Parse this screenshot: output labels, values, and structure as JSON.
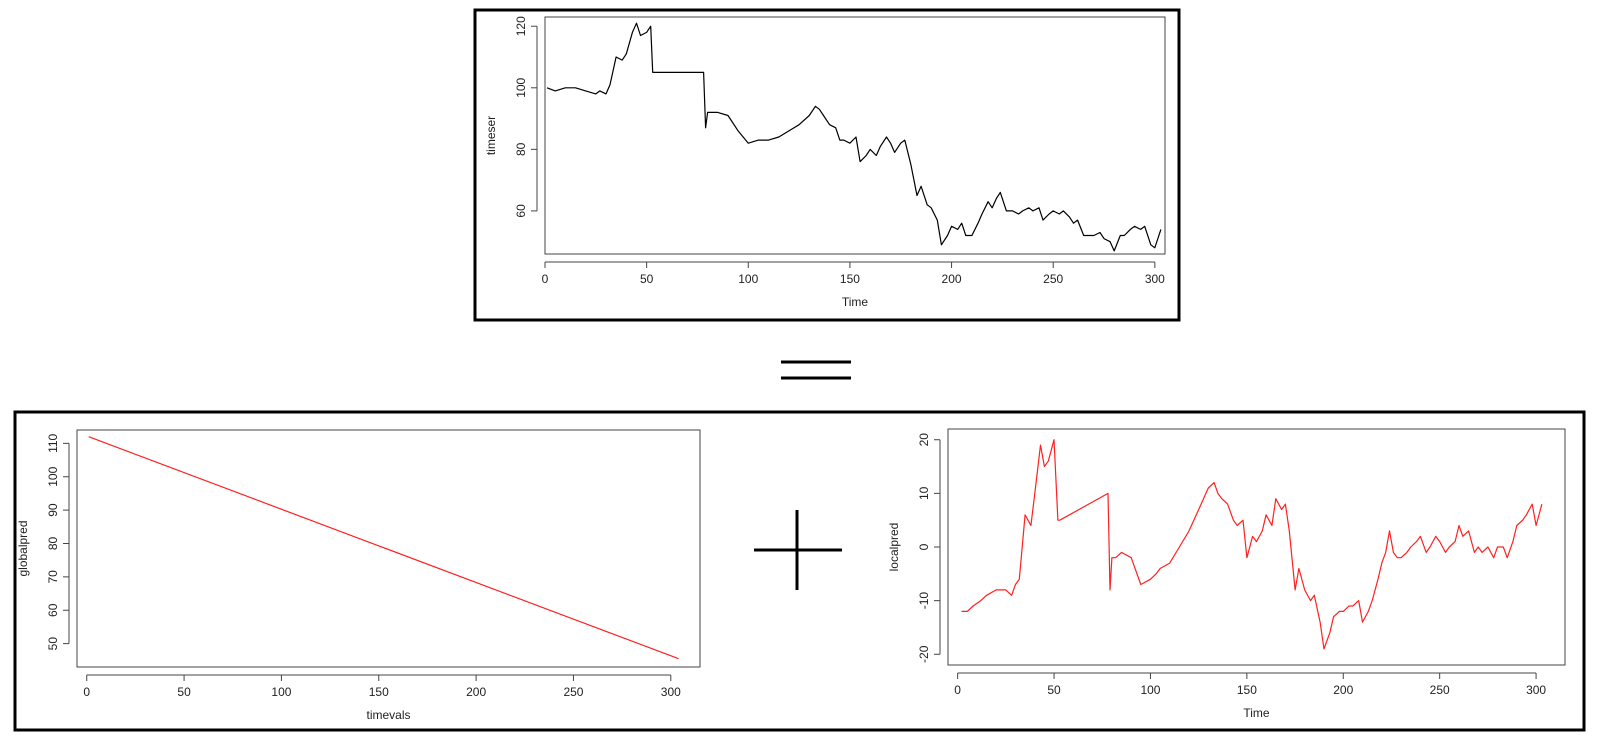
{
  "colors": {
    "frame": "#000000",
    "axis": "#444444",
    "series_black": "#000000",
    "series_red": "#ff2020"
  },
  "symbols": {
    "equals": "equals-icon",
    "plus": "plus-icon"
  },
  "chart_data": [
    {
      "id": "top",
      "type": "line",
      "title": "",
      "xlabel": "Time",
      "ylabel": "timeser",
      "xlim": [
        0,
        305
      ],
      "ylim": [
        46,
        123
      ],
      "xticks": [
        0,
        50,
        100,
        150,
        200,
        250,
        300
      ],
      "yticks": [
        60,
        80,
        100,
        120
      ],
      "color_key": "series_black",
      "series": [
        {
          "x": [
            1,
            5,
            10,
            15,
            20,
            25,
            27,
            30,
            32,
            35,
            38,
            40,
            43,
            45,
            47,
            50,
            52,
            53,
            78,
            79,
            80,
            82,
            85,
            90,
            95,
            100,
            105,
            110,
            115,
            120,
            125,
            130,
            133,
            135,
            137,
            140,
            143,
            145,
            147,
            150,
            153,
            155,
            158,
            160,
            163,
            165,
            168,
            170,
            172,
            175,
            177,
            180,
            183,
            185,
            188,
            190,
            193,
            195,
            198,
            200,
            203,
            205,
            207,
            210,
            213,
            215,
            218,
            220,
            222,
            224,
            227,
            230,
            233,
            235,
            238,
            240,
            243,
            245,
            248,
            250,
            253,
            255,
            258,
            260,
            262,
            265,
            267,
            270,
            273,
            275,
            278,
            280,
            283,
            285,
            288,
            290,
            293,
            295,
            298,
            300,
            303
          ],
          "y": [
            100,
            99,
            100,
            100,
            99,
            98,
            99,
            98,
            101,
            110,
            109,
            111,
            118,
            121,
            117,
            118,
            120,
            105,
            105,
            87,
            92,
            92,
            92,
            91,
            86,
            82,
            83,
            83,
            84,
            86,
            88,
            91,
            94,
            93,
            91,
            88,
            87,
            83,
            83,
            82,
            84,
            76,
            78,
            80,
            78,
            81,
            84,
            82,
            79,
            82,
            83,
            75,
            65,
            68,
            62,
            61,
            57,
            49,
            52,
            55,
            54,
            56,
            52,
            52,
            56,
            59,
            63,
            61,
            64,
            66,
            60,
            60,
            59,
            60,
            61,
            60,
            61,
            57,
            59,
            60,
            59,
            60,
            58,
            56,
            57,
            52,
            52,
            52,
            53,
            51,
            50,
            47,
            52,
            52,
            54,
            55,
            54,
            55,
            49,
            48,
            54
          ]
        }
      ]
    },
    {
      "id": "left",
      "type": "line",
      "title": "",
      "xlabel": "timevals",
      "ylabel": "globalpred",
      "xlim": [
        -5,
        315
      ],
      "ylim": [
        43,
        114
      ],
      "xticks": [
        0,
        50,
        100,
        150,
        200,
        250,
        300
      ],
      "yticks": [
        50,
        60,
        70,
        80,
        90,
        100,
        110
      ],
      "color_key": "series_red",
      "series": [
        {
          "x": [
            1,
            304
          ],
          "y": [
            112,
            45.5
          ]
        }
      ]
    },
    {
      "id": "right",
      "type": "line",
      "title": "",
      "xlabel": "Time",
      "ylabel": "localpred",
      "xlim": [
        -5,
        315
      ],
      "ylim": [
        -22,
        22
      ],
      "xticks": [
        0,
        50,
        100,
        150,
        200,
        250,
        300
      ],
      "yticks": [
        -20,
        -10,
        0,
        10,
        20
      ],
      "color_key": "series_red",
      "series": [
        {
          "x": [
            2,
            5,
            8,
            12,
            15,
            20,
            25,
            28,
            30,
            32,
            35,
            38,
            40,
            43,
            45,
            47,
            50,
            52,
            53,
            78,
            79,
            80,
            82,
            85,
            90,
            95,
            100,
            103,
            105,
            110,
            115,
            120,
            125,
            130,
            133,
            135,
            137,
            140,
            143,
            145,
            148,
            150,
            153,
            155,
            158,
            160,
            163,
            165,
            168,
            170,
            172,
            175,
            177,
            180,
            183,
            185,
            188,
            190,
            193,
            195,
            198,
            200,
            203,
            205,
            208,
            210,
            213,
            215,
            218,
            220,
            222,
            224,
            226,
            228,
            230,
            233,
            235,
            238,
            240,
            243,
            245,
            248,
            250,
            253,
            255,
            258,
            260,
            262,
            265,
            268,
            270,
            272,
            275,
            278,
            280,
            283,
            285,
            288,
            290,
            293,
            295,
            298,
            300,
            303
          ],
          "y": [
            -12,
            -12,
            -11,
            -10,
            -9,
            -8,
            -8,
            -9,
            -7,
            -6,
            6,
            4,
            10,
            19,
            15,
            16,
            20,
            5,
            5,
            10,
            -8,
            -2,
            -2,
            -1,
            -2,
            -7,
            -6,
            -5,
            -4,
            -3,
            0,
            3,
            7,
            11,
            12,
            10,
            9,
            8,
            5,
            4,
            5,
            -2,
            2,
            1,
            3,
            6,
            4,
            9,
            7,
            8,
            3,
            -8,
            -4,
            -8,
            -10,
            -9,
            -14,
            -19,
            -16,
            -13,
            -12,
            -12,
            -11,
            -11,
            -10,
            -14,
            -12,
            -10,
            -6,
            -3,
            -1,
            3,
            -1,
            -2,
            -2,
            -1,
            0,
            1,
            2,
            -1,
            0,
            2,
            1,
            -1,
            0,
            1,
            4,
            2,
            3,
            -1,
            0,
            -1,
            0,
            -2,
            0,
            0,
            -2,
            1,
            4,
            5,
            6,
            8,
            4,
            8
          ]
        }
      ]
    }
  ]
}
